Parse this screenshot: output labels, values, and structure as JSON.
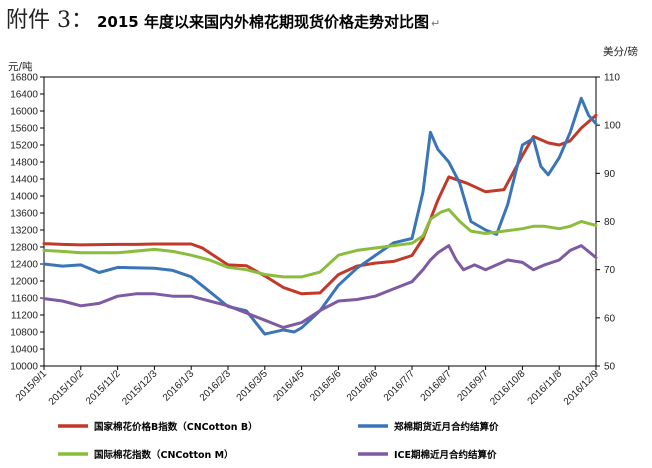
{
  "header": {
    "prefix": "附件 3：",
    "title": "2015 年度以来国内外棉花期现货价格走势对比图",
    "mark": "↵"
  },
  "chart_data": {
    "type": "line",
    "left_unit": "元/吨",
    "right_unit": "美分/磅",
    "y_left": {
      "min": 10000,
      "max": 16800,
      "ticks": [
        10000,
        10400,
        10800,
        11200,
        11600,
        12000,
        12400,
        12800,
        13200,
        13600,
        14000,
        14400,
        14800,
        15200,
        15600,
        16000,
        16400,
        16800
      ]
    },
    "y_right": {
      "min": 50,
      "max": 110,
      "ticks": [
        50,
        60,
        70,
        80,
        90,
        100,
        110
      ]
    },
    "categories": [
      "2015/9/1",
      "2015/10/2",
      "2015/11/2",
      "2015/12/3",
      "2016/1/3",
      "2016/2/3",
      "2016/3/5",
      "2016/4/5",
      "2016/5/6",
      "2016/6/6",
      "2016/7/7",
      "2016/8/7",
      "2016/9/7",
      "2016/10/8",
      "2016/11/8",
      "2016/12/9"
    ],
    "series": [
      {
        "name": "国家棉花价格B指数（CNCotton B）",
        "axis": "left",
        "color": "#c0392b",
        "points": [
          [
            0,
            12880
          ],
          [
            0.5,
            12860
          ],
          [
            1,
            12850
          ],
          [
            2,
            12860
          ],
          [
            2.5,
            12860
          ],
          [
            3,
            12870
          ],
          [
            4,
            12870
          ],
          [
            4.3,
            12780
          ],
          [
            5,
            12380
          ],
          [
            5.5,
            12360
          ],
          [
            6,
            12120
          ],
          [
            6.5,
            11850
          ],
          [
            7,
            11700
          ],
          [
            7.5,
            11720
          ],
          [
            8,
            12150
          ],
          [
            8.5,
            12350
          ],
          [
            9,
            12420
          ],
          [
            9.5,
            12460
          ],
          [
            10,
            12600
          ],
          [
            10.3,
            13000
          ],
          [
            10.7,
            13900
          ],
          [
            11,
            14450
          ],
          [
            11.5,
            14300
          ],
          [
            12,
            14100
          ],
          [
            12.5,
            14150
          ],
          [
            13,
            14950
          ],
          [
            13.3,
            15400
          ],
          [
            13.7,
            15250
          ],
          [
            14,
            15200
          ],
          [
            14.3,
            15300
          ],
          [
            14.6,
            15600
          ],
          [
            15,
            15900
          ]
        ]
      },
      {
        "name": "郑棉期货近月合约结算价",
        "axis": "left",
        "color": "#3a75b8",
        "points": [
          [
            0,
            12400
          ],
          [
            0.5,
            12350
          ],
          [
            1,
            12380
          ],
          [
            1.5,
            12200
          ],
          [
            2,
            12320
          ],
          [
            3,
            12300
          ],
          [
            3.5,
            12250
          ],
          [
            4,
            12100
          ],
          [
            4.5,
            11750
          ],
          [
            5,
            11400
          ],
          [
            5.5,
            11300
          ],
          [
            6,
            10750
          ],
          [
            6.5,
            10850
          ],
          [
            6.8,
            10800
          ],
          [
            7,
            10900
          ],
          [
            7.5,
            11300
          ],
          [
            8,
            11900
          ],
          [
            8.5,
            12300
          ],
          [
            9,
            12600
          ],
          [
            9.5,
            12900
          ],
          [
            10,
            13000
          ],
          [
            10.3,
            14100
          ],
          [
            10.5,
            15500
          ],
          [
            10.7,
            15100
          ],
          [
            11,
            14800
          ],
          [
            11.3,
            14300
          ],
          [
            11.6,
            13400
          ],
          [
            12,
            13200
          ],
          [
            12.3,
            13100
          ],
          [
            12.6,
            13800
          ],
          [
            13,
            15200
          ],
          [
            13.3,
            15350
          ],
          [
            13.5,
            14700
          ],
          [
            13.7,
            14500
          ],
          [
            14,
            14900
          ],
          [
            14.3,
            15500
          ],
          [
            14.6,
            16300
          ],
          [
            14.8,
            15900
          ],
          [
            15,
            15700
          ]
        ]
      },
      {
        "name": "国际棉花指数（CNCotton M）",
        "axis": "right",
        "color": "#8bbd3c",
        "points": [
          [
            0,
            74
          ],
          [
            0.5,
            73.8
          ],
          [
            1,
            73.5
          ],
          [
            2,
            73.5
          ],
          [
            3,
            74.2
          ],
          [
            3.5,
            73.8
          ],
          [
            4,
            73
          ],
          [
            4.5,
            72
          ],
          [
            5,
            70.5
          ],
          [
            5.5,
            70
          ],
          [
            6,
            69
          ],
          [
            6.5,
            68.5
          ],
          [
            7,
            68.5
          ],
          [
            7.5,
            69.5
          ],
          [
            8,
            73
          ],
          [
            8.5,
            74
          ],
          [
            9,
            74.5
          ],
          [
            9.5,
            75
          ],
          [
            10,
            75.5
          ],
          [
            10.3,
            77
          ],
          [
            10.5,
            80.5
          ],
          [
            10.8,
            82
          ],
          [
            11,
            82.5
          ],
          [
            11.3,
            80
          ],
          [
            11.6,
            78
          ],
          [
            12,
            77.5
          ],
          [
            12.5,
            78
          ],
          [
            13,
            78.5
          ],
          [
            13.3,
            79
          ],
          [
            13.6,
            79
          ],
          [
            14,
            78.5
          ],
          [
            14.3,
            79
          ],
          [
            14.6,
            80
          ],
          [
            15,
            79.2
          ]
        ]
      },
      {
        "name": "ICE期棉近月合约结算价",
        "axis": "right",
        "color": "#7e5aa2",
        "points": [
          [
            0,
            64
          ],
          [
            0.5,
            63.5
          ],
          [
            1,
            62.5
          ],
          [
            1.5,
            63
          ],
          [
            2,
            64.5
          ],
          [
            2.5,
            65
          ],
          [
            3,
            65
          ],
          [
            3.5,
            64.5
          ],
          [
            4,
            64.5
          ],
          [
            4.5,
            63.5
          ],
          [
            5,
            62.5
          ],
          [
            5.5,
            61
          ],
          [
            6,
            59.5
          ],
          [
            6.5,
            58
          ],
          [
            7,
            59
          ],
          [
            7.5,
            61.5
          ],
          [
            8,
            63.5
          ],
          [
            8.5,
            63.8
          ],
          [
            9,
            64.5
          ],
          [
            9.5,
            66
          ],
          [
            10,
            67.5
          ],
          [
            10.3,
            70
          ],
          [
            10.5,
            72
          ],
          [
            10.7,
            73.5
          ],
          [
            11,
            75
          ],
          [
            11.2,
            72
          ],
          [
            11.4,
            70
          ],
          [
            11.7,
            71
          ],
          [
            12,
            70
          ],
          [
            12.3,
            71
          ],
          [
            12.6,
            72
          ],
          [
            13,
            71.5
          ],
          [
            13.3,
            70
          ],
          [
            13.6,
            71
          ],
          [
            14,
            72
          ],
          [
            14.3,
            74
          ],
          [
            14.6,
            75
          ],
          [
            15,
            72.5
          ]
        ]
      }
    ]
  }
}
